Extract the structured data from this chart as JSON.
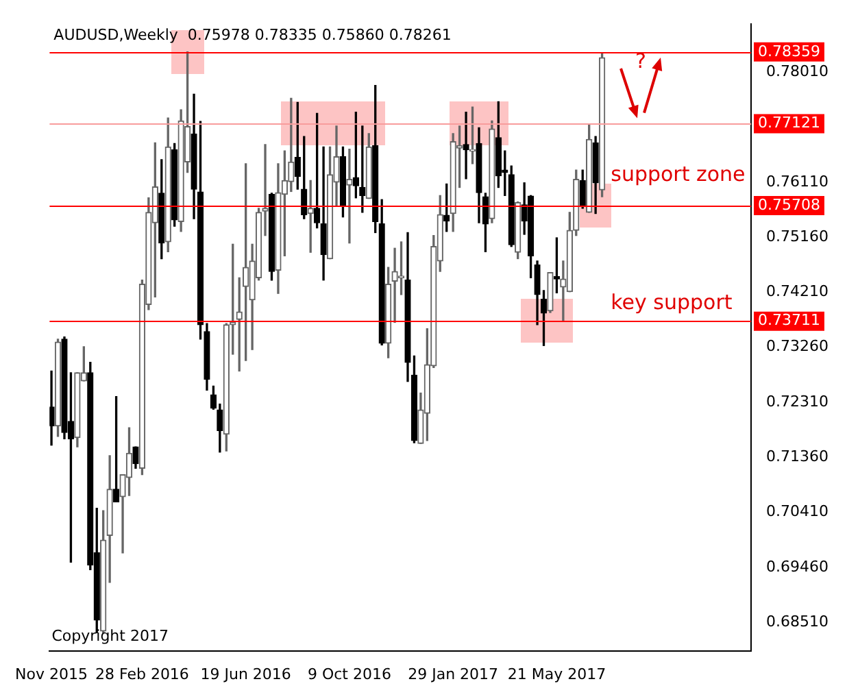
{
  "chart_data": {
    "type": "candlestick",
    "title": "AUDUSD,Weekly  0.75978 0.78335 0.75860 0.78261",
    "x": [
      "2015-11-22",
      "2015-11-29",
      "2015-12-06",
      "2015-12-13",
      "2015-12-20",
      "2015-12-27",
      "2016-01-03",
      "2016-01-10",
      "2016-01-17",
      "2016-01-24",
      "2016-01-31",
      "2016-02-07",
      "2016-02-14",
      "2016-02-21",
      "2016-02-28",
      "2016-03-06",
      "2016-03-13",
      "2016-03-20",
      "2016-03-27",
      "2016-04-03",
      "2016-04-10",
      "2016-04-17",
      "2016-04-24",
      "2016-05-01",
      "2016-05-08",
      "2016-05-15",
      "2016-05-22",
      "2016-05-29",
      "2016-06-05",
      "2016-06-12",
      "2016-06-19",
      "2016-06-26",
      "2016-07-03",
      "2016-07-10",
      "2016-07-17",
      "2016-07-24",
      "2016-07-31",
      "2016-08-07",
      "2016-08-14",
      "2016-08-21",
      "2016-08-28",
      "2016-09-04",
      "2016-09-11",
      "2016-09-18",
      "2016-09-25",
      "2016-10-02",
      "2016-10-09",
      "2016-10-16",
      "2016-10-23",
      "2016-10-30",
      "2016-11-06",
      "2016-11-13",
      "2016-11-20",
      "2016-11-27",
      "2016-12-04",
      "2016-12-11",
      "2016-12-18",
      "2016-12-25",
      "2017-01-01",
      "2017-01-08",
      "2017-01-15",
      "2017-01-22",
      "2017-01-29",
      "2017-02-05",
      "2017-02-12",
      "2017-02-19",
      "2017-02-26",
      "2017-03-05",
      "2017-03-12",
      "2017-03-19",
      "2017-03-26",
      "2017-04-02",
      "2017-04-09",
      "2017-04-16",
      "2017-04-23",
      "2017-04-30",
      "2017-05-07",
      "2017-05-14",
      "2017-05-21",
      "2017-05-28",
      "2017-06-04",
      "2017-06-11",
      "2017-06-18",
      "2017-06-25",
      "2017-07-02",
      "2017-07-09"
    ],
    "ohlc": [
      [
        0.7223,
        0.7285,
        0.7157,
        0.719
      ],
      [
        0.719,
        0.734,
        0.7172,
        0.7335
      ],
      [
        0.734,
        0.7344,
        0.7168,
        0.7179
      ],
      [
        0.7198,
        0.7282,
        0.6955,
        0.7168
      ],
      [
        0.717,
        0.7282,
        0.7154,
        0.7282
      ],
      [
        0.7268,
        0.7327,
        0.7268,
        0.7282
      ],
      [
        0.7282,
        0.73,
        0.6942,
        0.695
      ],
      [
        0.6971,
        0.7048,
        0.6833,
        0.6855
      ],
      [
        0.6836,
        0.7044,
        0.6833,
        0.6993
      ],
      [
        0.7001,
        0.7139,
        0.692,
        0.7081
      ],
      [
        0.7081,
        0.7241,
        0.7059,
        0.7059
      ],
      [
        0.7068,
        0.7106,
        0.6971,
        0.7106
      ],
      [
        0.7101,
        0.7187,
        0.707,
        0.7143
      ],
      [
        0.7154,
        0.7154,
        0.7117,
        0.7125
      ],
      [
        0.7117,
        0.7442,
        0.7106,
        0.7435
      ],
      [
        0.74,
        0.7584,
        0.7391,
        0.7559
      ],
      [
        0.7541,
        0.7679,
        0.7413,
        0.7603
      ],
      [
        0.7592,
        0.765,
        0.7479,
        0.7506
      ],
      [
        0.7508,
        0.7722,
        0.7491,
        0.7672
      ],
      [
        0.7667,
        0.7678,
        0.7535,
        0.7546
      ],
      [
        0.7543,
        0.7736,
        0.7526,
        0.7717
      ],
      [
        0.7646,
        0.7836,
        0.7628,
        0.7707
      ],
      [
        0.7694,
        0.7763,
        0.7548,
        0.7599
      ],
      [
        0.7594,
        0.7716,
        0.734,
        0.7365
      ],
      [
        0.7353,
        0.7367,
        0.7252,
        0.7271
      ],
      [
        0.7244,
        0.7259,
        0.7219,
        0.7221
      ],
      [
        0.7218,
        0.7228,
        0.7145,
        0.7182
      ],
      [
        0.7176,
        0.7367,
        0.7147,
        0.7365
      ],
      [
        0.7365,
        0.7504,
        0.7314,
        0.7369
      ],
      [
        0.7374,
        0.7446,
        0.7285,
        0.7387
      ],
      [
        0.7431,
        0.7643,
        0.7303,
        0.7464
      ],
      [
        0.7408,
        0.7504,
        0.7322,
        0.7475
      ],
      [
        0.7446,
        0.7566,
        0.7442,
        0.7559
      ],
      [
        0.7561,
        0.7676,
        0.7519,
        0.7566
      ],
      [
        0.759,
        0.7592,
        0.7442,
        0.7457
      ],
      [
        0.7459,
        0.7643,
        0.7419,
        0.7593
      ],
      [
        0.759,
        0.7665,
        0.7484,
        0.7614
      ],
      [
        0.7612,
        0.7756,
        0.7595,
        0.7646
      ],
      [
        0.7654,
        0.7749,
        0.7599,
        0.7621
      ],
      [
        0.7599,
        0.769,
        0.7548,
        0.7555
      ],
      [
        0.7557,
        0.7614,
        0.749,
        0.7566
      ],
      [
        0.7566,
        0.773,
        0.7532,
        0.7541
      ],
      [
        0.7539,
        0.7672,
        0.7442,
        0.7486
      ],
      [
        0.7479,
        0.7672,
        0.7479,
        0.7624
      ],
      [
        0.7611,
        0.7708,
        0.757,
        0.7655
      ],
      [
        0.7655,
        0.7672,
        0.7551,
        0.7571
      ],
      [
        0.7606,
        0.7668,
        0.7506,
        0.7616
      ],
      [
        0.7619,
        0.7732,
        0.7584,
        0.7605
      ],
      [
        0.7602,
        0.7708,
        0.7559,
        0.7588
      ],
      [
        0.7583,
        0.7695,
        0.7583,
        0.7672
      ],
      [
        0.7674,
        0.7778,
        0.7524,
        0.7543
      ],
      [
        0.7539,
        0.7581,
        0.733,
        0.7333
      ],
      [
        0.7333,
        0.7464,
        0.7308,
        0.7435
      ],
      [
        0.744,
        0.7497,
        0.7369,
        0.7457
      ],
      [
        0.7446,
        0.7508,
        0.7417,
        0.7449
      ],
      [
        0.7442,
        0.7524,
        0.7267,
        0.73
      ],
      [
        0.7278,
        0.7311,
        0.7161,
        0.7165
      ],
      [
        0.716,
        0.7247,
        0.716,
        0.7218
      ],
      [
        0.7212,
        0.7358,
        0.7165,
        0.7296
      ],
      [
        0.7294,
        0.7519,
        0.7291,
        0.75
      ],
      [
        0.7475,
        0.7588,
        0.7457,
        0.7555
      ],
      [
        0.7554,
        0.7608,
        0.7526,
        0.7544
      ],
      [
        0.7557,
        0.7695,
        0.7526,
        0.7681
      ],
      [
        0.767,
        0.7708,
        0.7602,
        0.7674
      ],
      [
        0.7676,
        0.7732,
        0.7617,
        0.7667
      ],
      [
        0.7665,
        0.7741,
        0.7643,
        0.7667
      ],
      [
        0.7678,
        0.7705,
        0.7541,
        0.7593
      ],
      [
        0.7586,
        0.7592,
        0.7491,
        0.7539
      ],
      [
        0.7548,
        0.7717,
        0.7541,
        0.7703
      ],
      [
        0.7688,
        0.775,
        0.7602,
        0.7622
      ],
      [
        0.7632,
        0.7665,
        0.7588,
        0.7628
      ],
      [
        0.7624,
        0.7639,
        0.75,
        0.7503
      ],
      [
        0.749,
        0.7577,
        0.7479,
        0.7576
      ],
      [
        0.7572,
        0.761,
        0.7521,
        0.7544
      ],
      [
        0.7587,
        0.7588,
        0.7446,
        0.7484
      ],
      [
        0.7468,
        0.7475,
        0.7365,
        0.7417
      ],
      [
        0.7409,
        0.7424,
        0.7329,
        0.7385
      ],
      [
        0.7389,
        0.7455,
        0.7386,
        0.7455
      ],
      [
        0.7448,
        0.7515,
        0.742,
        0.7444
      ],
      [
        0.743,
        0.7475,
        0.7371,
        0.7444
      ],
      [
        0.7422,
        0.7559,
        0.7422,
        0.7528
      ],
      [
        0.7528,
        0.7632,
        0.7519,
        0.7616
      ],
      [
        0.7614,
        0.7632,
        0.7566,
        0.757
      ],
      [
        0.7559,
        0.7711,
        0.7559,
        0.7685
      ],
      [
        0.7679,
        0.769,
        0.7557,
        0.761
      ],
      [
        0.75978,
        0.78335,
        0.7586,
        0.78261
      ]
    ],
    "xlim": [
      "2015-11-20",
      "2017-12-17"
    ],
    "xticks": [
      {
        "value": "2015-11-22",
        "label": "Nov 2015"
      },
      {
        "value": "2016-02-28",
        "label": "28 Feb 2016"
      },
      {
        "value": "2016-06-19",
        "label": "19 Jun 2016"
      },
      {
        "value": "2016-10-09",
        "label": "9 Oct 2016"
      },
      {
        "value": "2017-01-29",
        "label": "29 Jan 2017"
      },
      {
        "value": "2017-05-21",
        "label": "21 May 2017"
      }
    ],
    "ylim": [
      0.6802,
      0.7884
    ],
    "yticks": [
      {
        "value": 0.7801,
        "label": "0.78010"
      },
      {
        "value": 0.7611,
        "label": "0.76110"
      },
      {
        "value": 0.7516,
        "label": "0.75160"
      },
      {
        "value": 0.7421,
        "label": "0.74210"
      },
      {
        "value": 0.7326,
        "label": "0.73260"
      },
      {
        "value": 0.7231,
        "label": "0.72310"
      },
      {
        "value": 0.7136,
        "label": "0.71360"
      },
      {
        "value": 0.7041,
        "label": "0.70410"
      },
      {
        "value": 0.6946,
        "label": "0.69460"
      },
      {
        "value": 0.6851,
        "label": "0.68510"
      }
    ],
    "ref_lines": [
      {
        "axis": "y",
        "value": 0.78359,
        "label": "0.78359",
        "color": "#ff0000"
      },
      {
        "axis": "y",
        "value": 0.77121,
        "label": "0.77121",
        "color": "#f89c9c"
      },
      {
        "axis": "y",
        "value": 0.75708,
        "label": "0.75708",
        "color": "#ff0000"
      },
      {
        "axis": "y",
        "value": 0.73711,
        "label": "0.73711",
        "color": "#ff0000"
      }
    ],
    "annotations": [
      "?",
      "support zone",
      "key support",
      "Copyright 2017"
    ]
  }
}
